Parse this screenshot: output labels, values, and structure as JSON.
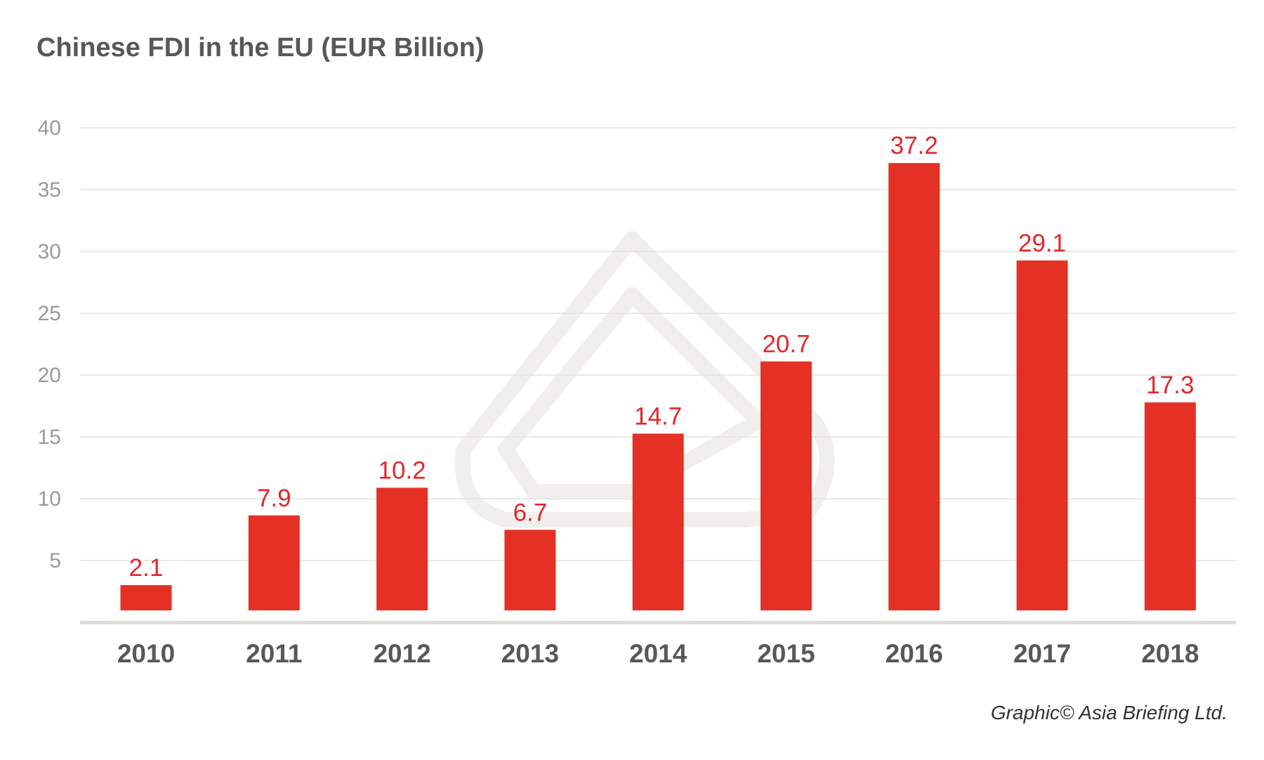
{
  "chart_data": {
    "type": "bar",
    "title": "Chinese FDI in the EU (EUR Billion)",
    "xlabel": "",
    "ylabel": "",
    "categories": [
      "2010",
      "2011",
      "2012",
      "2013",
      "2014",
      "2015",
      "2016",
      "2017",
      "2018"
    ],
    "values": [
      2.1,
      7.9,
      10.2,
      6.7,
      14.7,
      20.7,
      37.2,
      29.1,
      17.3
    ],
    "value_labels": [
      "2.1",
      "7.9",
      "10.2",
      "6.7",
      "14.7",
      "20.7",
      "37.2",
      "29.1",
      "17.3"
    ],
    "yticks": [
      "5",
      "10",
      "15",
      "20",
      "25",
      "30",
      "35",
      "40"
    ],
    "ytick_values": [
      5,
      10,
      15,
      20,
      25,
      30,
      35,
      40
    ],
    "ylim": [
      0,
      40
    ],
    "grid": true,
    "bar_color": "#e53125",
    "label_color": "#e3262b",
    "credit": "Graphic© Asia Briefing Ltd."
  }
}
